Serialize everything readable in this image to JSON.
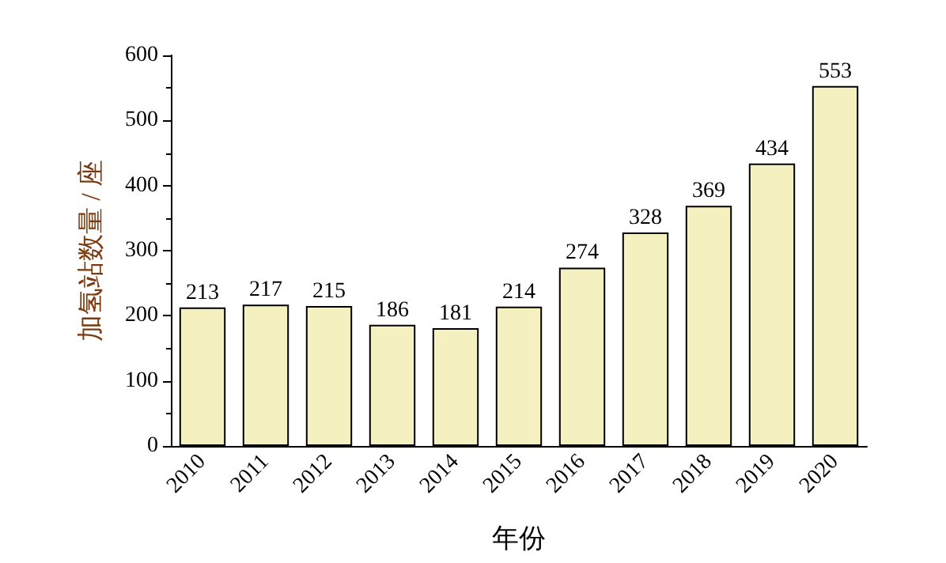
{
  "chart_data": {
    "type": "bar",
    "xlabel": "年份",
    "ylabel": "加氢站数量 / 座",
    "categories": [
      "2010",
      "2011",
      "2012",
      "2013",
      "2014",
      "2015",
      "2016",
      "2017",
      "2018",
      "2019",
      "2020"
    ],
    "values": [
      213,
      217,
      215,
      186,
      181,
      214,
      274,
      328,
      369,
      434,
      553
    ],
    "color": "#f5f0c0",
    "ylim": [
      0,
      600
    ],
    "yticks": [
      0,
      100,
      200,
      300,
      400,
      500,
      600
    ],
    "grid": false,
    "data_labels": true
  }
}
